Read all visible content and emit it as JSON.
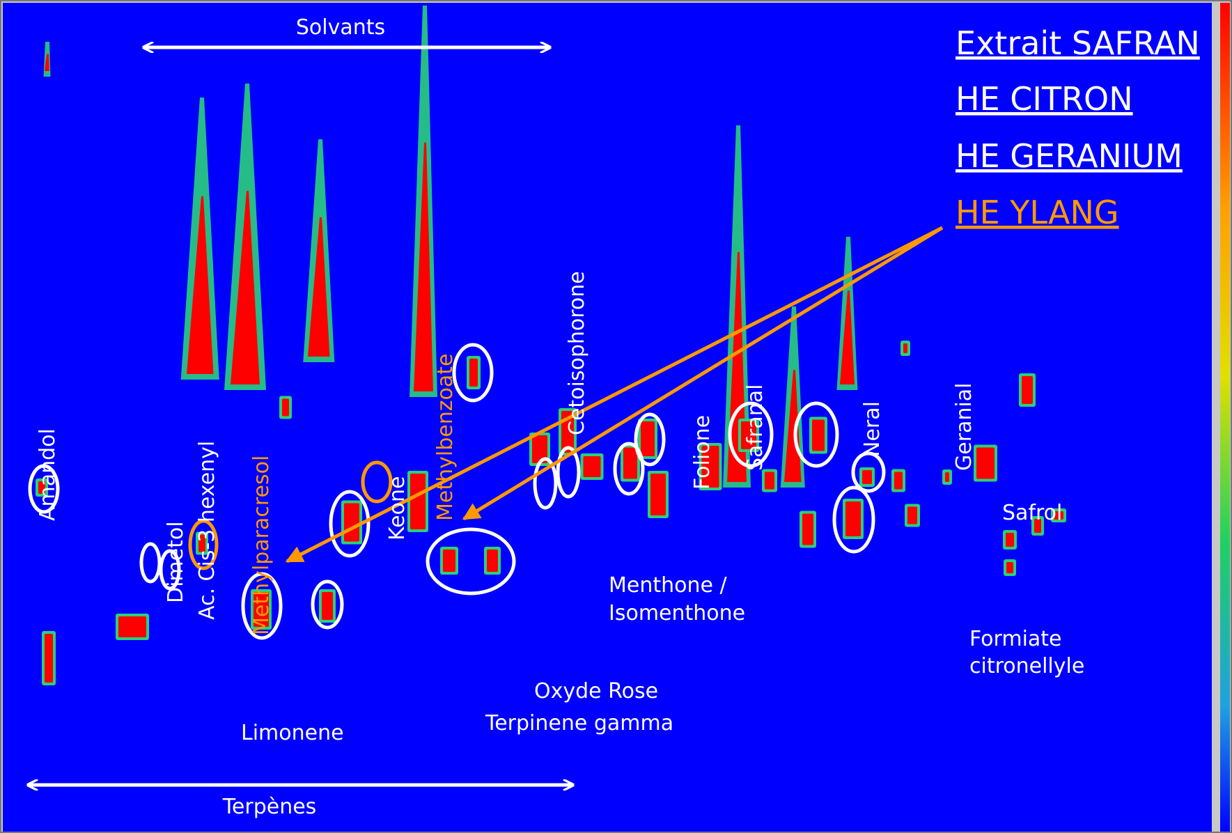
{
  "chart_data": {
    "type": "heatmap",
    "colorscale": [
      "#0000ff",
      "#2ad07a",
      "#8ee878",
      "#ff0000"
    ],
    "background_color": "#0000ff",
    "annotation_color": "#ffffff",
    "highlight_color": "#ff9900",
    "legend": [
      {
        "label": "Extrait SAFRAN",
        "color": "#ffffff"
      },
      {
        "label": "HE CITRON",
        "color": "#ffffff"
      },
      {
        "label": "HE GERANIUM",
        "color": "#ffffff"
      },
      {
        "label": "HE YLANG",
        "color": "#ff9900"
      }
    ],
    "legend_placement": "top-right",
    "ranges": [
      {
        "label": "Solvants"
      },
      {
        "label": "Terpènes"
      }
    ],
    "compounds": [
      {
        "label": "Amandol",
        "orientation": "vertical",
        "color": "#ffffff"
      },
      {
        "label": "Dimetol",
        "orientation": "vertical",
        "color": "#ffffff"
      },
      {
        "label": "Ac. Cis-3 hexenyl",
        "orientation": "vertical",
        "color": "#ffffff"
      },
      {
        "label": "Methylparacresol",
        "orientation": "vertical",
        "color": "#ff9900"
      },
      {
        "label": "Keone",
        "orientation": "vertical",
        "color": "#ffffff"
      },
      {
        "label": "Methylbenzoate",
        "orientation": "vertical",
        "color": "#ff9900"
      },
      {
        "label": "Cetoisophorone",
        "orientation": "vertical",
        "color": "#ffffff"
      },
      {
        "label": "Folione",
        "orientation": "vertical",
        "color": "#ffffff"
      },
      {
        "label": "Safranal",
        "orientation": "vertical",
        "color": "#ffffff"
      },
      {
        "label": "Neral",
        "orientation": "vertical",
        "color": "#ffffff"
      },
      {
        "label": "Geranial",
        "orientation": "vertical",
        "color": "#ffffff"
      },
      {
        "label": "Safrol",
        "orientation": "horizontal",
        "color": "#ffffff"
      },
      {
        "label": "Menthone /",
        "orientation": "horizontal",
        "color": "#ffffff"
      },
      {
        "label": "Isomenthone",
        "orientation": "horizontal",
        "color": "#ffffff"
      },
      {
        "label": "Formiate",
        "orientation": "horizontal",
        "color": "#ffffff"
      },
      {
        "label": "citronellyle",
        "orientation": "horizontal",
        "color": "#ffffff"
      },
      {
        "label": "Oxyde Rose",
        "orientation": "horizontal",
        "color": "#ffffff"
      },
      {
        "label": "Limonene",
        "orientation": "horizontal",
        "color": "#ffffff"
      },
      {
        "label": "Terpinene gamma",
        "orientation": "horizontal",
        "color": "#ffffff"
      }
    ]
  }
}
